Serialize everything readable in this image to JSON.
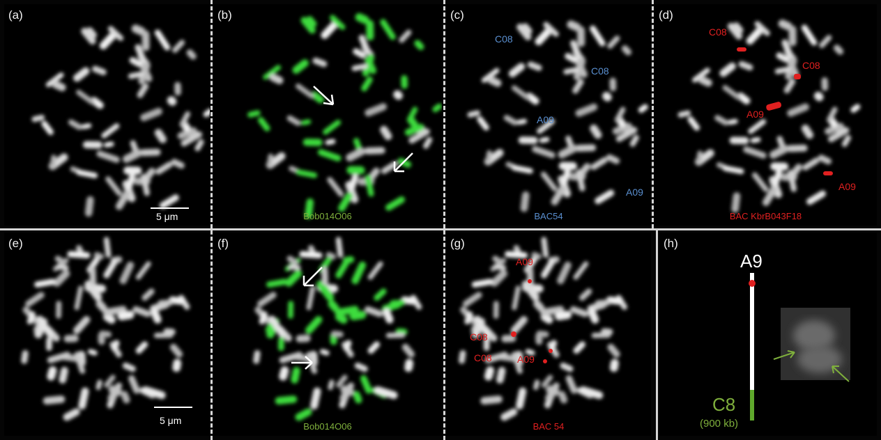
{
  "panels": {
    "a": {
      "label": "(a)",
      "scale": "5 μm"
    },
    "b": {
      "label": "(b)",
      "probe": "Bob014O06"
    },
    "c": {
      "label": "(c)",
      "probe": "BAC54",
      "marks": [
        "C08",
        "C08",
        "A09",
        "A09"
      ]
    },
    "d": {
      "label": "(d)",
      "probe": "BAC KbrB043F18",
      "marks": [
        "C08",
        "C08",
        "A09",
        "A09"
      ]
    },
    "e": {
      "label": "(e)",
      "scale": "5 μm"
    },
    "f": {
      "label": "(f)",
      "probe": "Bob014O06"
    },
    "g": {
      "label": "(g)",
      "probe": "BAC 54",
      "marks": [
        "A09",
        "C08",
        "C08",
        "A09"
      ]
    },
    "h": {
      "label": "(h)",
      "top": "A9",
      "bottom": "C8",
      "size": "(900 kb)"
    }
  },
  "colors": {
    "green": "#7fb03c",
    "blue": "#5a8fd0",
    "red": "#e02020",
    "fluor_green": "#3cdc3c"
  }
}
